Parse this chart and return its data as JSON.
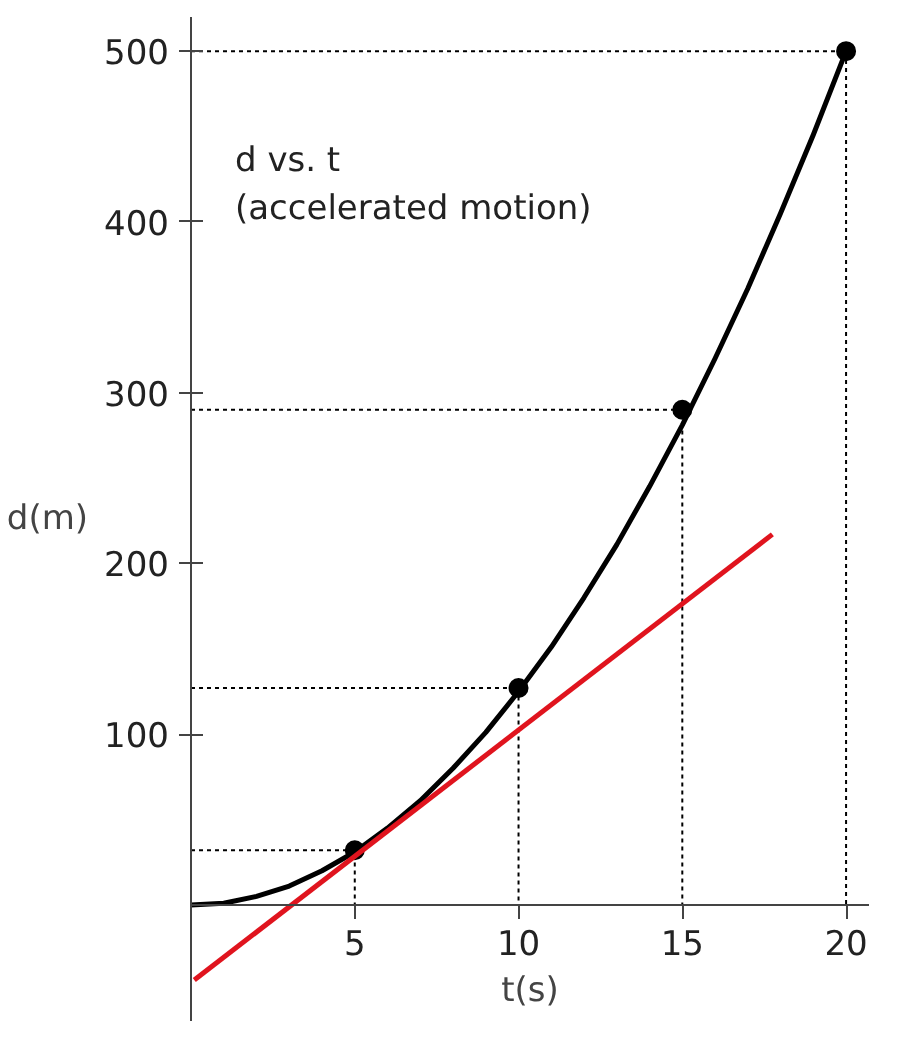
{
  "chart_data": {
    "type": "line",
    "xlabel": "t(s)",
    "ylabel": "d(m)",
    "annotations": [
      "d vs. t\n(accelerated motion)"
    ],
    "xlim": [
      0,
      20.7
    ],
    "ylim": [
      -68,
      520
    ],
    "xticks": [
      5,
      10,
      15,
      20
    ],
    "yticks": [
      100,
      200,
      300,
      400,
      500
    ],
    "grid": false,
    "series": [
      {
        "color": "#000000",
        "line_style": "solid",
        "x": [
          0,
          1,
          2,
          3,
          4,
          5,
          6,
          7,
          8,
          9,
          10,
          11,
          12,
          13,
          14,
          15,
          16,
          17,
          18,
          19,
          20
        ],
        "values": [
          0,
          1,
          5,
          11,
          20,
          31,
          45,
          61,
          80,
          101,
          125,
          151,
          180,
          211,
          245,
          281,
          320,
          361,
          405,
          451,
          500
        ]
      },
      {
        "type": "scatter",
        "color": "#000000",
        "marker": "circle",
        "x": [
          5,
          10,
          15,
          20
        ],
        "values": [
          32,
          127,
          290,
          500
        ]
      },
      {
        "type": "line",
        "color": "#000000",
        "line_style": "dotted",
        "x": [
          0,
          5,
          5,
          null,
          0,
          10,
          10,
          null,
          0,
          15,
          15,
          null,
          0,
          20,
          20
        ],
        "values": [
          32,
          32,
          0,
          null,
          127,
          127,
          0,
          null,
          290,
          290,
          0,
          null,
          500,
          500,
          0
        ]
      },
      {
        "type": "line",
        "color": "#e0141e",
        "line_style": "solid",
        "x": [
          0.1,
          17.75
        ],
        "values": [
          -44,
          217
        ]
      }
    ]
  }
}
